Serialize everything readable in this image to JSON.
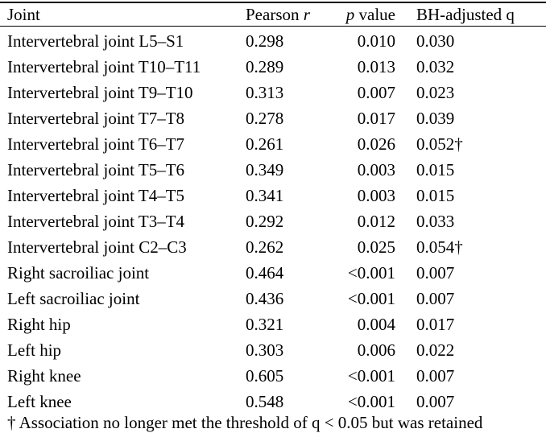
{
  "header": {
    "joint": "Joint",
    "r_label": "Pearson",
    "r_symbol": "r",
    "p_symbol": "p",
    "p_label": "value",
    "q_label": "BH-adjusted q"
  },
  "rows": [
    {
      "joint": "Intervertebral joint L5–S1",
      "r": "0.298",
      "p": "0.010",
      "q": "0.030"
    },
    {
      "joint": "Intervertebral joint T10–T11",
      "r": "0.289",
      "p": "0.013",
      "q": "0.032"
    },
    {
      "joint": "Intervertebral joint T9–T10",
      "r": "0.313",
      "p": "0.007",
      "q": "0.023"
    },
    {
      "joint": "Intervertebral joint T7–T8",
      "r": "0.278",
      "p": "0.017",
      "q": "0.039"
    },
    {
      "joint": "Intervertebral joint T6–T7",
      "r": "0.261",
      "p": "0.026",
      "q": "0.052†"
    },
    {
      "joint": "Intervertebral joint T5–T6",
      "r": "0.349",
      "p": "0.003",
      "q": "0.015"
    },
    {
      "joint": "Intervertebral joint T4–T5",
      "r": "0.341",
      "p": "0.003",
      "q": "0.015"
    },
    {
      "joint": "Intervertebral joint T3–T4",
      "r": "0.292",
      "p": "0.012",
      "q": "0.033"
    },
    {
      "joint": "Intervertebral joint C2–C3",
      "r": "0.262",
      "p": "0.025",
      "q": "0.054†"
    },
    {
      "joint": "Right sacroiliac joint",
      "r": "0.464",
      "p": "<0.001",
      "q": "0.007"
    },
    {
      "joint": "Left sacroiliac joint",
      "r": "0.436",
      "p": "<0.001",
      "q": "0.007"
    },
    {
      "joint": "Right hip",
      "r": "0.321",
      "p": "0.004",
      "q": "0.017"
    },
    {
      "joint": "Left hip",
      "r": "0.303",
      "p": "0.006",
      "q": "0.022"
    },
    {
      "joint": "Right knee",
      "r": "0.605",
      "p": "<0.001",
      "q": "0.007"
    },
    {
      "joint": "Left knee",
      "r": "0.548",
      "p": "<0.001",
      "q": "0.007"
    }
  ],
  "footnote": "† Association no longer met the threshold of q < 0.05 but was retained"
}
